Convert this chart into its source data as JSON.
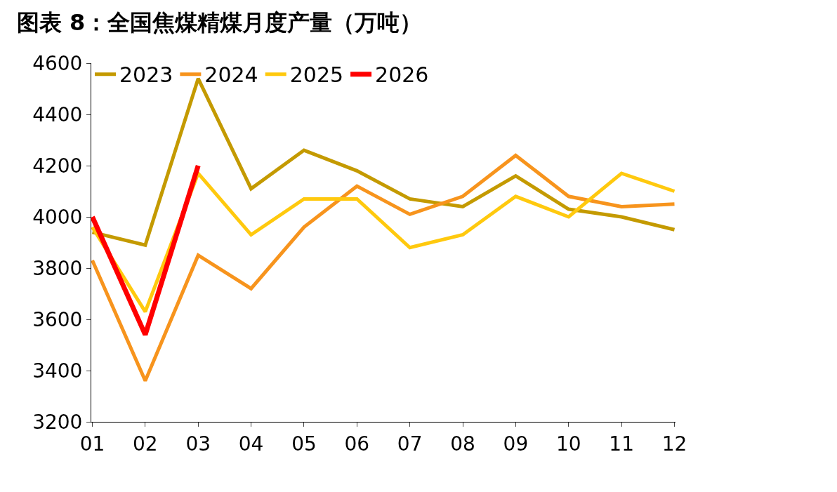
{
  "chart_data": {
    "type": "line",
    "title": "图表 8：全国焦煤精煤月度产量（万吨）",
    "categories": [
      "01",
      "02",
      "03",
      "04",
      "05",
      "06",
      "07",
      "08",
      "09",
      "10",
      "11",
      "12"
    ],
    "series": [
      {
        "name": "2023",
        "color": "#c49a00",
        "values": [
          3940,
          3890,
          4540,
          4110,
          4260,
          4180,
          4070,
          4040,
          4160,
          4030,
          4000,
          3950
        ]
      },
      {
        "name": "2024",
        "color": "#f7941d",
        "values": [
          3830,
          3360,
          3850,
          3720,
          3960,
          4120,
          4010,
          4080,
          4240,
          4080,
          4040,
          4050
        ]
      },
      {
        "name": "2025",
        "color": "#ffc90e",
        "values": [
          3960,
          3630,
          4170,
          3930,
          4070,
          4070,
          3880,
          3930,
          4080,
          4000,
          4170,
          4100
        ]
      },
      {
        "name": "2026",
        "color": "#ff0000",
        "values": [
          4000,
          3540,
          4200,
          null,
          null,
          null,
          null,
          null,
          null,
          null,
          null,
          null
        ]
      }
    ],
    "ylim": [
      3200,
      4600
    ],
    "yticks": [
      3200,
      3400,
      3600,
      3800,
      4000,
      4200,
      4400,
      4600
    ],
    "legend": "top left",
    "marker": "none",
    "line_style": "solid"
  }
}
